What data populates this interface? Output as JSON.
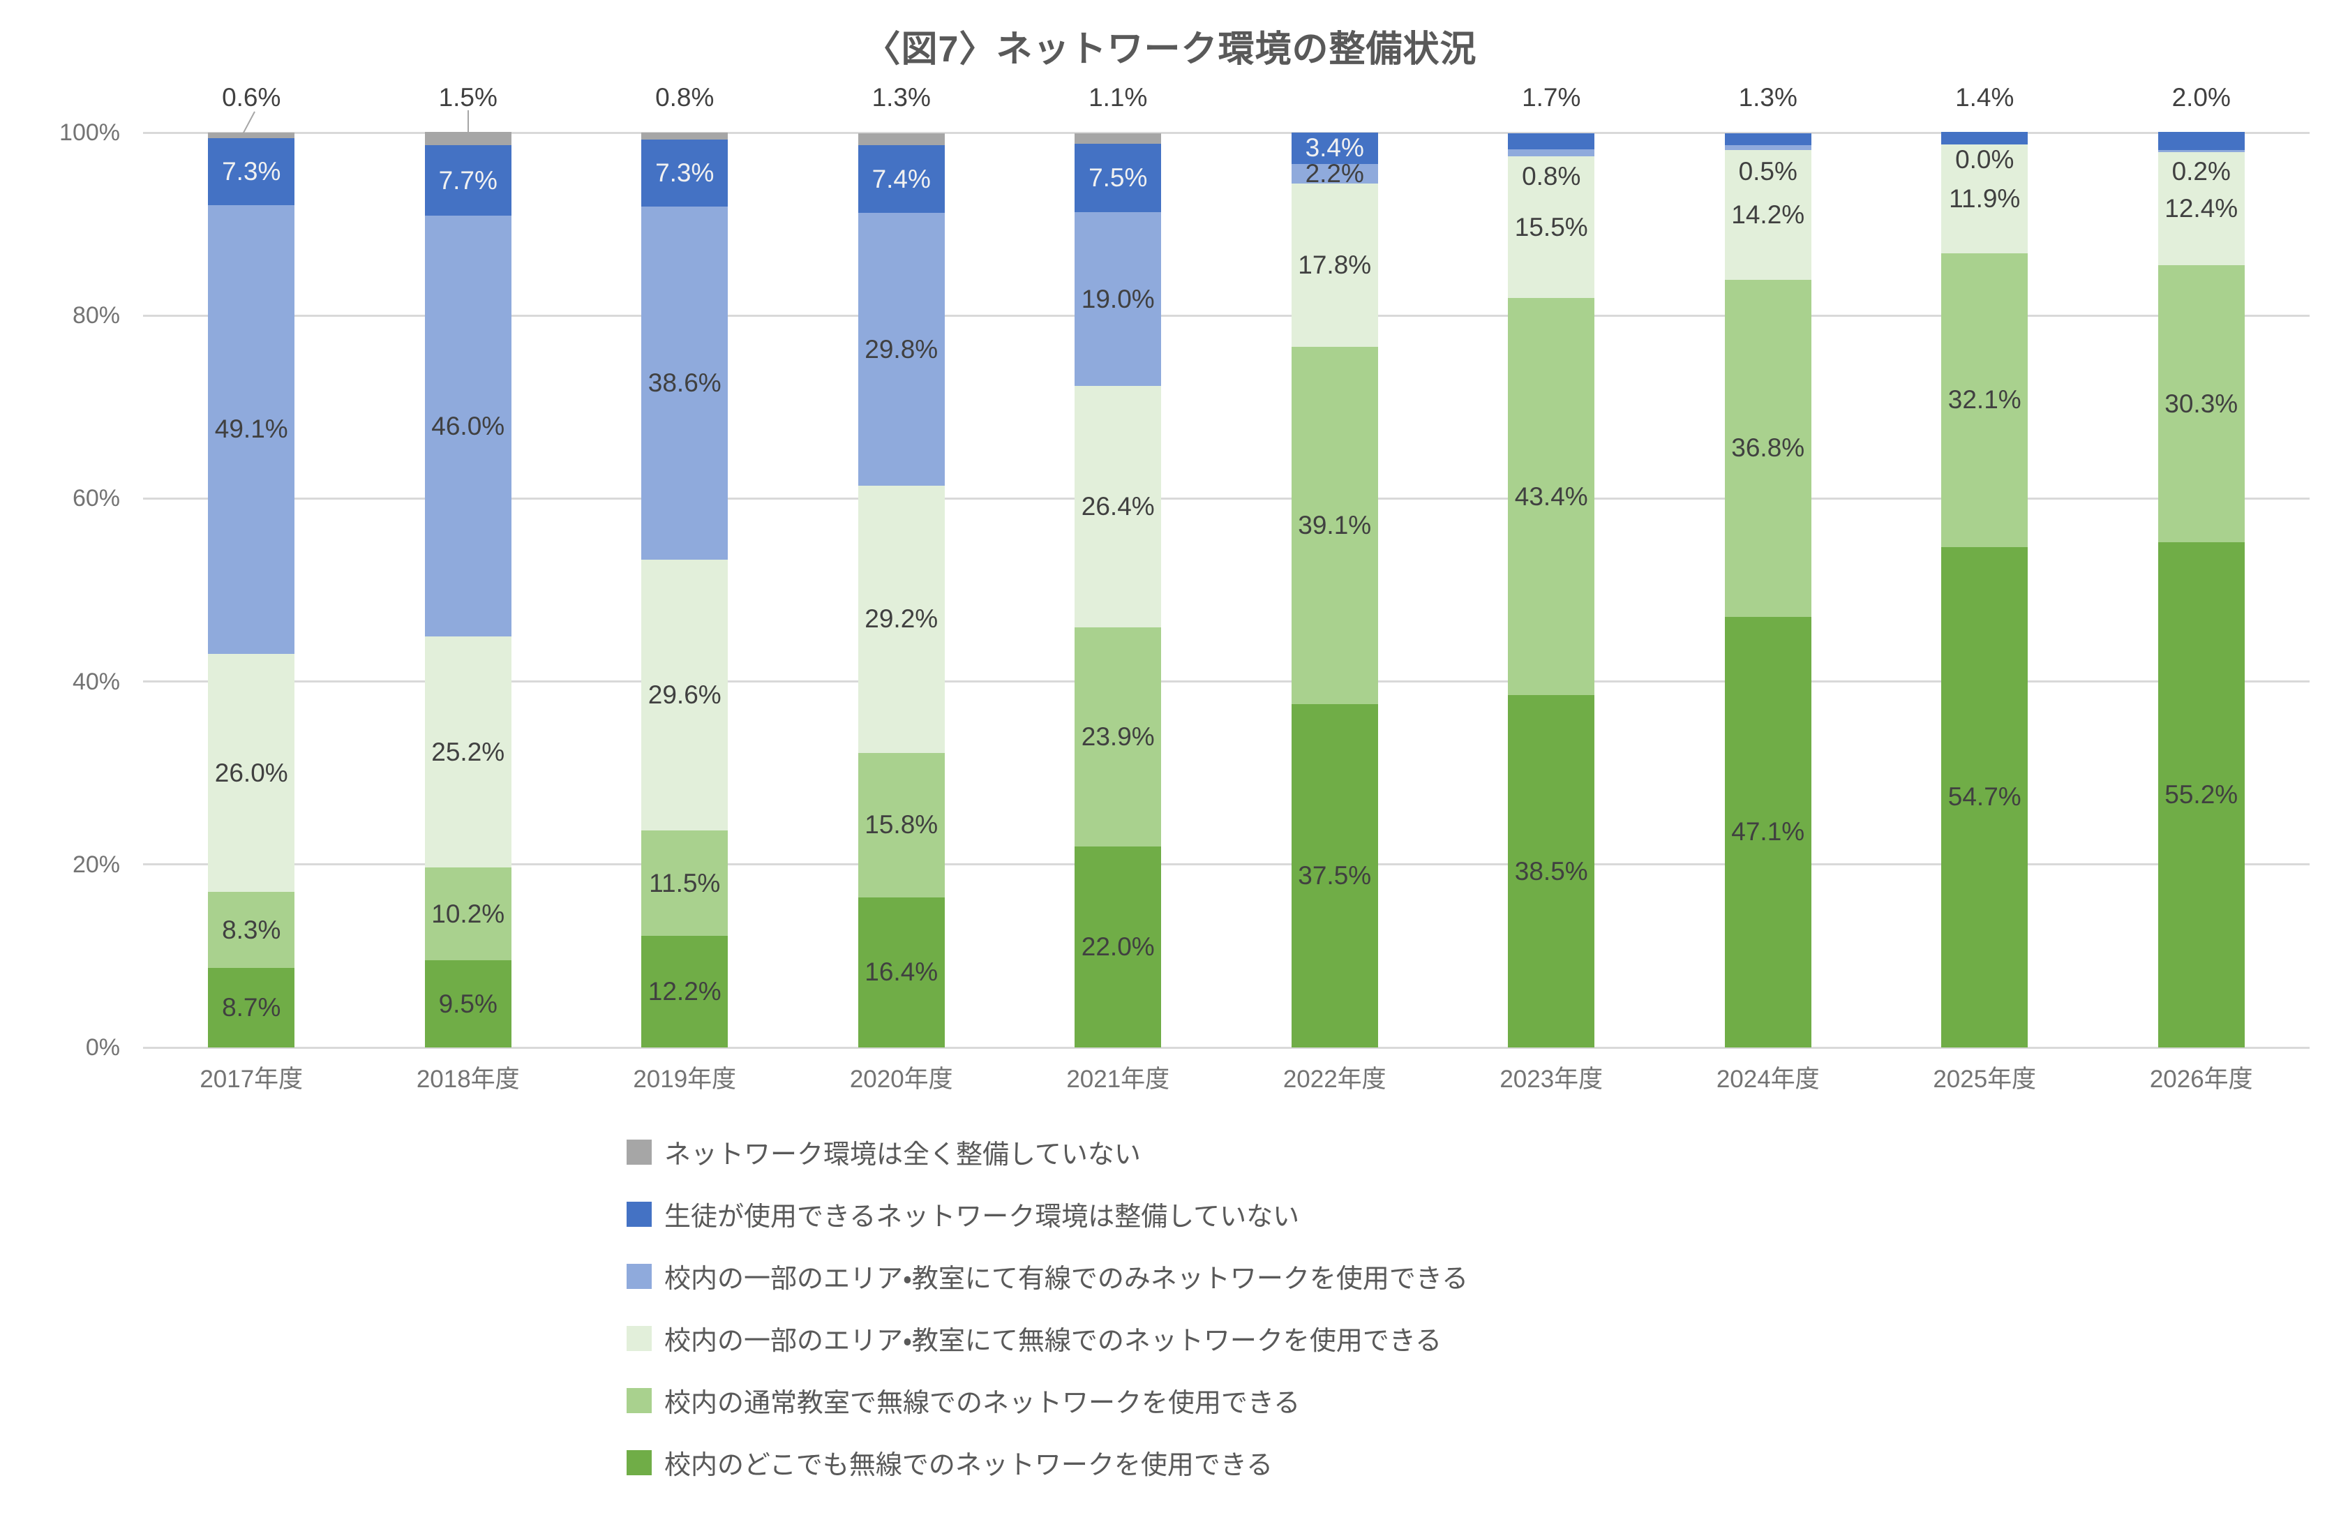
{
  "ui_colors": {
    "background": "#FFFFFF",
    "grid": "#D9D9D9",
    "title_text": "#595959",
    "axis_text": "#737373",
    "label_dark": "#404040",
    "label_light": "#F1F1F1",
    "legend_text": "#595959",
    "leader_line": "#A6A6A6"
  },
  "chart_data": {
    "type": "bar",
    "subtype": "stacked-100-percent-column",
    "title": "〈図7〉ネットワーク環境の整備状況",
    "xlabel": "",
    "ylabel": "",
    "ylim": [
      0,
      100
    ],
    "grid": "horizontal",
    "legend_position": "bottom",
    "value_label_format": "{value}%",
    "categories": [
      "2017年度",
      "2018年度",
      "2019年度",
      "2020年度",
      "2021年度",
      "2022年度",
      "2023年度",
      "2024年度",
      "2025年度",
      "2026年度"
    ],
    "y_ticks": [
      {
        "value": 0,
        "label": "0%"
      },
      {
        "value": 20,
        "label": "20%"
      },
      {
        "value": 40,
        "label": "40%"
      },
      {
        "value": 60,
        "label": "60%"
      },
      {
        "value": 80,
        "label": "80%"
      },
      {
        "value": 100,
        "label": "100%"
      }
    ],
    "series": [
      {
        "id": "anywhere-wireless",
        "label": "校内のどこでも無線でのネットワークを使用できる",
        "color": "#70AD47",
        "values": [
          8.7,
          9.5,
          12.2,
          16.4,
          22.0,
          37.5,
          38.5,
          47.1,
          54.7,
          55.2
        ]
      },
      {
        "id": "classroom-wireless",
        "label": "校内の通常教室で無線でのネットワークを使用できる",
        "color": "#A9D18E",
        "values": [
          8.3,
          10.2,
          11.5,
          15.8,
          23.9,
          39.1,
          43.4,
          36.8,
          32.1,
          30.3
        ]
      },
      {
        "id": "partial-area-wireless",
        "label": "校内の一部のエリア・教室にて無線でのネットワークを使用できる",
        "color": "#E2EFDA",
        "values": [
          26.0,
          25.2,
          29.6,
          29.2,
          26.4,
          17.8,
          15.5,
          14.2,
          11.9,
          12.4
        ]
      },
      {
        "id": "partial-area-wired-only",
        "label": "校内の一部のエリア・教室にて有線でのみネットワークを使用できる",
        "color": "#8FAADC",
        "values": [
          49.1,
          46.0,
          38.6,
          29.8,
          19.0,
          2.2,
          0.8,
          0.5,
          0.0,
          0.2
        ],
        "label_dy": [
          0,
          0,
          0,
          0,
          0,
          0,
          34,
          34,
          22,
          30
        ]
      },
      {
        "id": "no-student-network",
        "label": "生徒が使用できるネットワーク環境は整備していない",
        "color": "#4472C4",
        "text": "light",
        "values": [
          7.3,
          7.7,
          7.3,
          7.4,
          7.5,
          3.4,
          1.7,
          1.3,
          1.4,
          2.0
        ],
        "label_mode": [
          "inside",
          "inside",
          "inside",
          "inside",
          "inside",
          "inside",
          "above",
          "above",
          "above",
          "above"
        ]
      },
      {
        "id": "no-network-at-all",
        "label": "ネットワーク環境は全く整備していない",
        "color": "#A6A6A6",
        "values": [
          0.6,
          1.5,
          0.8,
          1.3,
          1.1,
          null,
          null,
          null,
          null,
          null
        ],
        "label_mode": [
          "above",
          "above",
          "above",
          "above",
          "above",
          null,
          null,
          null,
          null,
          null
        ],
        "leaders": [
          "diagonal",
          "vertical",
          null,
          null,
          null,
          null,
          null,
          null,
          null,
          null
        ]
      }
    ],
    "legend_order": [
      "no-network-at-all",
      "no-student-network",
      "partial-area-wired-only",
      "partial-area-wireless",
      "classroom-wireless",
      "anywhere-wireless"
    ]
  }
}
